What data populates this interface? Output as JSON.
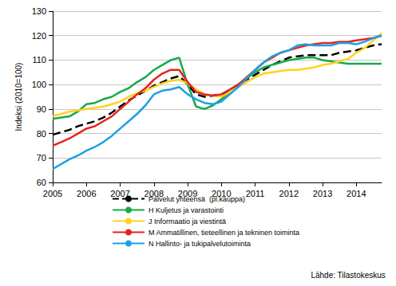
{
  "chart_data": {
    "type": "line",
    "y_label": "Indeksi (2010=100)",
    "annotation": "Lähde: Tilastokeskus",
    "x": [
      2005,
      2005.25,
      2005.5,
      2005.75,
      2006,
      2006.25,
      2006.5,
      2006.75,
      2007,
      2007.25,
      2007.5,
      2007.75,
      2008,
      2008.25,
      2008.5,
      2008.75,
      2009,
      2009.25,
      2009.5,
      2009.75,
      2010,
      2010.25,
      2010.5,
      2010.75,
      2011,
      2011.25,
      2011.5,
      2011.75,
      2012,
      2012.25,
      2012.5,
      2012.75,
      2013,
      2013.25,
      2013.5,
      2013.75,
      2014,
      2014.25,
      2014.5,
      2014.75
    ],
    "series": [
      {
        "name": "Palvelut yhteensä  (pl.kauppa)",
        "color": "#000000",
        "line_style": "dashed",
        "values": [
          79.5,
          80.5,
          81.5,
          83,
          84,
          85,
          86.5,
          88.5,
          91,
          93.5,
          95.5,
          97.5,
          99.5,
          101,
          102.5,
          103.5,
          100,
          96,
          95,
          95.5,
          96,
          97.5,
          100,
          102,
          104,
          106,
          108,
          109.5,
          111,
          111.5,
          112,
          112,
          112,
          112,
          113,
          113.5,
          114,
          115,
          116,
          116.5
        ]
      },
      {
        "name": "H Kuljetus ja varastointi",
        "color": "#1aa84a",
        "line_style": "solid",
        "values": [
          86,
          86.5,
          87,
          89,
          92,
          92.5,
          94,
          95,
          97,
          98.5,
          101,
          103,
          106,
          108,
          110,
          111,
          100,
          91,
          90,
          91.5,
          94,
          97,
          100,
          102.5,
          105,
          107,
          108,
          109,
          110,
          110.5,
          111,
          111,
          110,
          109.5,
          109,
          108.5,
          108.5,
          108.5,
          108.5,
          108.5
        ]
      },
      {
        "name": "J Informaatio ja viestintä",
        "color": "#ffd21f",
        "line_style": "solid",
        "values": [
          87,
          88,
          89,
          89.5,
          90,
          90.5,
          91,
          92,
          93,
          95,
          96.5,
          97.5,
          99,
          100.5,
          101.5,
          102,
          100.5,
          98,
          96,
          95.5,
          95,
          97,
          99,
          101,
          103,
          104.5,
          105,
          105.5,
          106,
          106,
          106.5,
          107,
          108,
          108.5,
          109.5,
          110.5,
          113,
          115,
          118,
          121
        ]
      },
      {
        "name": "M Ammatillinen, tieteellinen ja tekninen toiminta",
        "color": "#e5231e",
        "line_style": "solid",
        "values": [
          75,
          76.5,
          78,
          80,
          82,
          83,
          85,
          87,
          90,
          93,
          96,
          98.5,
          102,
          104.5,
          106,
          106,
          101,
          97,
          96,
          95.5,
          96,
          98,
          100,
          103,
          106,
          109,
          111,
          113,
          114,
          115,
          116,
          116.5,
          117,
          117,
          117.5,
          117.5,
          118,
          118.5,
          119,
          120
        ]
      },
      {
        "name": "N Hallinto- ja tukipalvelutoiminta",
        "color": "#1ba1e2",
        "line_style": "solid",
        "values": [
          65.5,
          67.5,
          69.5,
          71,
          73,
          74.5,
          76.5,
          79,
          82,
          85,
          88,
          91.5,
          96,
          97.5,
          98,
          99,
          96,
          94,
          92.5,
          92,
          93,
          96,
          99,
          102.5,
          106,
          109,
          111.5,
          113,
          114,
          116,
          116.5,
          116,
          116,
          116,
          117,
          117,
          116.5,
          117.5,
          119,
          120
        ]
      }
    ],
    "xlim": [
      2005,
      2014.75
    ],
    "xticks": [
      2005,
      2006,
      2007,
      2008,
      2009,
      2010,
      2011,
      2012,
      2013,
      2014
    ],
    "ylim": [
      60,
      130
    ],
    "yticks": [
      60,
      70,
      80,
      90,
      100,
      110,
      120,
      130
    ],
    "grid": true,
    "legend": "bottom"
  }
}
